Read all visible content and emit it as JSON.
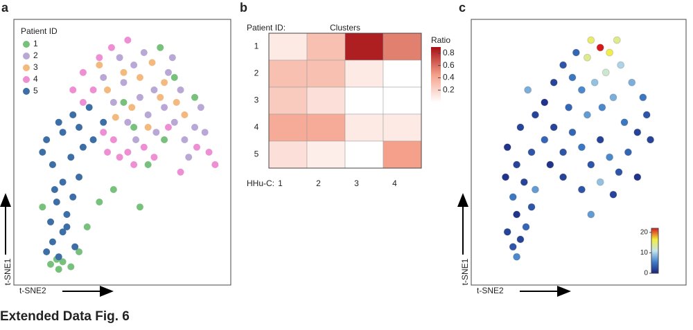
{
  "caption": "Extended Data Fig. 6",
  "chart_data": [
    {
      "type": "scatter",
      "label": "a",
      "x_label": "t-SNE2",
      "y_label": "t-SNE1",
      "legend_title": "Patient ID",
      "legend": "top-left",
      "xlim": [
        0,
        100
      ],
      "ylim": [
        0,
        100
      ],
      "series": [
        {
          "name": "1",
          "color": "#78c17c",
          "x": [
            14,
            18,
            20,
            24,
            17,
            28,
            32,
            10,
            38,
            45,
            58,
            62,
            70,
            75,
            85,
            68,
            55,
            50
          ],
          "y": [
            5,
            3,
            6,
            4,
            7,
            10,
            20,
            28,
            30,
            35,
            28,
            45,
            55,
            80,
            72,
            92,
            60,
            70
          ]
        },
        {
          "name": "2",
          "color": "#b9a7d6",
          "x": [
            45,
            50,
            55,
            60,
            65,
            70,
            75,
            80,
            85,
            88,
            78,
            72,
            62,
            58,
            52,
            48,
            40,
            82,
            90,
            66,
            74,
            56
          ],
          "y": [
            70,
            78,
            85,
            90,
            75,
            68,
            62,
            55,
            60,
            68,
            75,
            82,
            65,
            72,
            62,
            88,
            80,
            48,
            58,
            58,
            88,
            55
          ]
        },
        {
          "name": "3",
          "color": "#f4b97f",
          "x": [
            42,
            50,
            58,
            64,
            70,
            76,
            54,
            46,
            80,
            62,
            38,
            68
          ],
          "y": [
            75,
            82,
            80,
            86,
            78,
            70,
            68,
            64,
            65,
            60,
            85,
            72
          ]
        },
        {
          "name": "4",
          "color": "#ef8fd3",
          "x": [
            30,
            35,
            40,
            45,
            48,
            52,
            55,
            60,
            38,
            44,
            52,
            72,
            86,
            92,
            95,
            30,
            42,
            65,
            78,
            25
          ],
          "y": [
            70,
            75,
            58,
            55,
            48,
            50,
            45,
            52,
            88,
            92,
            95,
            60,
            52,
            50,
            45,
            82,
            50,
            48,
            42,
            75
          ]
        },
        {
          "name": "5",
          "color": "#3e6ea6",
          "x": [
            12,
            15,
            18,
            20,
            14,
            22,
            17,
            25,
            20,
            28,
            15,
            24,
            30,
            12,
            20,
            28,
            35,
            18,
            25,
            33,
            40,
            10,
            22,
            26,
            16
          ],
          "y": [
            10,
            14,
            8,
            18,
            22,
            25,
            30,
            32,
            38,
            40,
            45,
            48,
            52,
            55,
            58,
            60,
            55,
            62,
            65,
            68,
            62,
            50,
            20,
            12,
            35
          ]
        }
      ]
    },
    {
      "type": "heatmap",
      "label": "b",
      "title": "Clusters",
      "row_title": "Patient ID:",
      "column_title": "HHu-C:",
      "rows": [
        "1",
        "2",
        "3",
        "4",
        "5"
      ],
      "columns": [
        "1",
        "2",
        "3",
        "4"
      ],
      "values": [
        [
          0.1,
          0.3,
          0.85,
          0.55
        ],
        [
          0.3,
          0.3,
          0.1,
          0
        ],
        [
          0.25,
          0.15,
          0,
          0
        ],
        [
          0.4,
          0.4,
          0.1,
          0.1
        ],
        [
          0.15,
          0.08,
          0,
          0.45
        ]
      ],
      "colorbar_title": "Ratio",
      "zlim": [
        0,
        0.9
      ],
      "zticks": [
        0.2,
        0.4,
        0.6,
        0.8
      ],
      "colors": [
        "#ffffff",
        "#f4a08a",
        "#a50f15"
      ]
    },
    {
      "type": "scatter",
      "label": "c",
      "x_label": "t-SNE2",
      "y_label": "t-SNE1",
      "xlim": [
        0,
        100
      ],
      "ylim": [
        0,
        100
      ],
      "x": [
        20,
        18,
        22,
        25,
        15,
        20,
        28,
        18,
        24,
        14,
        30,
        20,
        28,
        35,
        15,
        22,
        40,
        45,
        50,
        55,
        60,
        65,
        70,
        75,
        80,
        85,
        90,
        88,
        82,
        76,
        70,
        65,
        60,
        58,
        68,
        62,
        55,
        50,
        45,
        40,
        35,
        48,
        58,
        66,
        72,
        78,
        52,
        74,
        45,
        38,
        55,
        65,
        92,
        85,
        30,
        26,
        60,
        72
      ],
      "y": [
        8,
        12,
        15,
        20,
        18,
        25,
        28,
        32,
        38,
        40,
        35,
        45,
        50,
        55,
        52,
        60,
        60,
        50,
        58,
        52,
        45,
        55,
        48,
        42,
        50,
        58,
        65,
        72,
        78,
        85,
        90,
        92,
        95,
        88,
        82,
        78,
        75,
        80,
        85,
        78,
        70,
        68,
        65,
        68,
        72,
        62,
        90,
        95,
        40,
        45,
        35,
        38,
        55,
        40,
        65,
        75,
        25,
        33
      ],
      "values": [
        6,
        3,
        2,
        4,
        2,
        1,
        3,
        5,
        2,
        1,
        7,
        2,
        3,
        4,
        1,
        2,
        2,
        3,
        4,
        5,
        3,
        2,
        6,
        3,
        4,
        2,
        3,
        5,
        8,
        10,
        16,
        22,
        15,
        14,
        12,
        9,
        6,
        5,
        3,
        2,
        1,
        4,
        7,
        6,
        8,
        5,
        4,
        14,
        2,
        1,
        3,
        9,
        2,
        1,
        2,
        8,
        7,
        2
      ],
      "zlim": [
        0,
        22
      ],
      "zticks": [
        0,
        10,
        20
      ],
      "colors": [
        "#1a237e",
        "#3f7fc9",
        "#c4e6ee",
        "#f4ee3c",
        "#d7191c"
      ]
    }
  ]
}
